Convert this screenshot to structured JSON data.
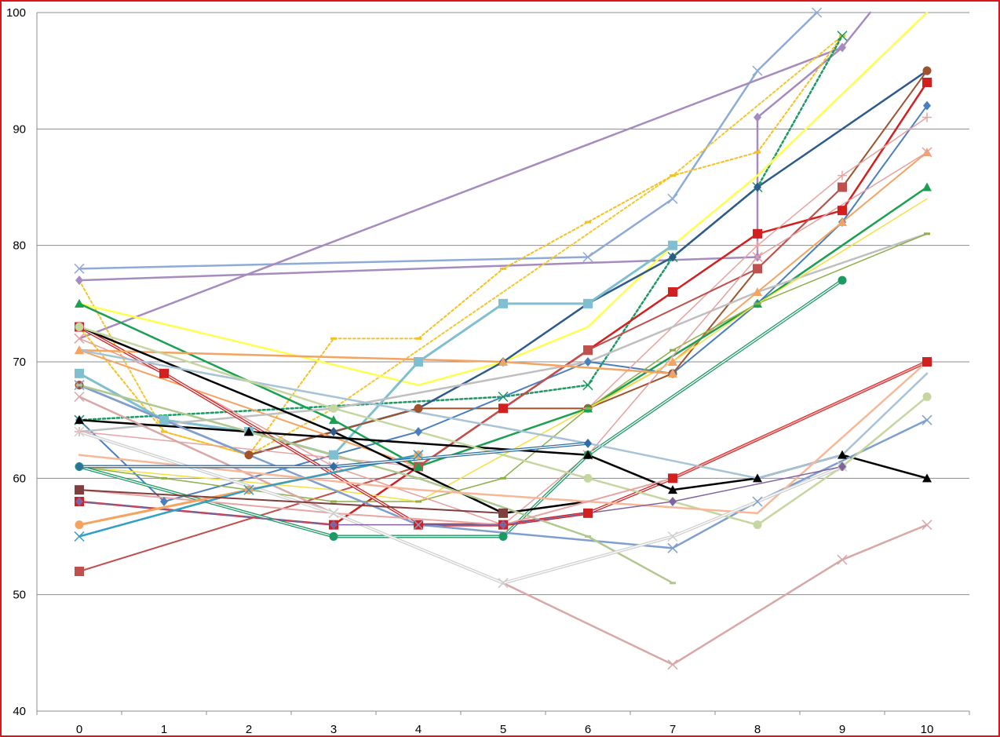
{
  "chart_data": {
    "type": "line",
    "title": "",
    "xlabel": "",
    "ylabel": "",
    "x": [
      0,
      1,
      2,
      3,
      4,
      5,
      6,
      7,
      8,
      9,
      10
    ],
    "ylim": [
      40,
      100
    ],
    "xlim": [
      0,
      10
    ],
    "y_ticks": [
      40,
      50,
      60,
      70,
      80,
      90,
      100
    ],
    "x_ticks": [
      0,
      1,
      2,
      3,
      4,
      5,
      6,
      7,
      8,
      9,
      10
    ],
    "grid": "horizontal",
    "legend": "none",
    "frame_color": "#d9161c",
    "series": [
      {
        "color": "#8eaad6",
        "width": 2.5,
        "marker": "x",
        "points": [
          [
            0,
            78
          ],
          [
            6,
            79
          ],
          [
            7,
            84
          ],
          [
            8,
            95
          ],
          [
            8.7,
            100
          ]
        ]
      },
      {
        "color": "#a68bbf",
        "width": 2.5,
        "marker": "none",
        "points": [
          [
            0,
            72
          ],
          [
            9,
            97
          ],
          [
            9.33,
            100
          ]
        ]
      },
      {
        "color": "#a68bbf",
        "width": 2.5,
        "marker": "diamond",
        "points": [
          [
            0,
            77
          ],
          [
            8,
            79
          ],
          [
            8,
            91
          ],
          [
            9,
            97
          ]
        ]
      },
      {
        "color": "#f2c72e",
        "width": 2,
        "dash": "3,3",
        "marker": "none",
        "points": [
          [
            0,
            77
          ],
          [
            1,
            64
          ],
          [
            2,
            62
          ],
          [
            3,
            66
          ],
          [
            4,
            71
          ],
          [
            5,
            76
          ],
          [
            6,
            81
          ],
          [
            7,
            86
          ],
          [
            8,
            92
          ],
          [
            9,
            98
          ]
        ]
      },
      {
        "color": "#f7c020",
        "width": 2,
        "dash": "3,3",
        "marker": "dash",
        "points": [
          [
            0,
            73
          ],
          [
            1,
            64
          ],
          [
            2,
            62
          ],
          [
            3,
            72
          ],
          [
            4,
            72
          ],
          [
            5,
            78
          ],
          [
            6,
            82
          ],
          [
            7,
            86
          ],
          [
            8,
            88
          ],
          [
            9,
            98
          ]
        ]
      },
      {
        "color": "#1d9a63",
        "width": 2.5,
        "dash": "3,3",
        "marker": "x",
        "points": [
          [
            0,
            65
          ],
          [
            5,
            67
          ],
          [
            6,
            68
          ],
          [
            7,
            79
          ],
          [
            8,
            85
          ],
          [
            9,
            98
          ]
        ]
      },
      {
        "color": "#ffff4d",
        "width": 2.5,
        "marker": "none",
        "points": [
          [
            0,
            75
          ],
          [
            4,
            68
          ],
          [
            5,
            70
          ],
          [
            6,
            73
          ],
          [
            7,
            80
          ],
          [
            8,
            86
          ],
          [
            9,
            93
          ],
          [
            10,
            100
          ]
        ]
      },
      {
        "color": "#2e5a8c",
        "width": 2.5,
        "marker": "diamond",
        "points": [
          [
            0,
            68
          ],
          [
            1,
            65
          ],
          [
            2,
            62
          ],
          [
            3,
            64
          ],
          [
            4,
            66
          ],
          [
            5,
            70
          ],
          [
            6,
            75
          ],
          [
            7,
            79
          ],
          [
            8,
            85
          ],
          [
            10,
            95
          ]
        ]
      },
      {
        "color": "#7fbfcf",
        "width": 3,
        "marker": "square",
        "points": [
          [
            0,
            69
          ],
          [
            1,
            65
          ],
          [
            2,
            64
          ],
          [
            3,
            62
          ],
          [
            4,
            70
          ],
          [
            5,
            75
          ],
          [
            6,
            75
          ],
          [
            7,
            80
          ]
        ]
      },
      {
        "color": "#d21f1f",
        "width": 2.5,
        "marker": "square",
        "points": [
          [
            0,
            58
          ],
          [
            3,
            56
          ],
          [
            4,
            61
          ],
          [
            5,
            66
          ],
          [
            6,
            71
          ],
          [
            7,
            76
          ],
          [
            8,
            81
          ],
          [
            9,
            83
          ],
          [
            10,
            94
          ]
        ]
      },
      {
        "color": "#a0522d",
        "width": 2,
        "marker": "circle",
        "points": [
          [
            0,
            68
          ],
          [
            2,
            62
          ],
          [
            4,
            66
          ],
          [
            6,
            66
          ],
          [
            7,
            69
          ],
          [
            8,
            78
          ],
          [
            9,
            85
          ],
          [
            10,
            95
          ]
        ]
      },
      {
        "color": "#4a7fbf",
        "width": 2,
        "marker": "diamond",
        "points": [
          [
            0,
            65
          ],
          [
            1,
            58
          ],
          [
            4,
            64
          ],
          [
            6,
            70
          ],
          [
            7,
            69
          ],
          [
            8,
            75
          ],
          [
            9,
            82
          ],
          [
            10,
            92
          ]
        ]
      },
      {
        "color": "#e8a3a3",
        "width": 1.5,
        "marker": "plus",
        "points": [
          [
            0,
            64
          ],
          [
            4,
            61
          ],
          [
            6,
            66
          ],
          [
            8,
            80
          ],
          [
            9,
            86
          ],
          [
            10,
            91
          ]
        ]
      },
      {
        "color": "#c0504d",
        "width": 2,
        "marker": "square",
        "points": [
          [
            0,
            52
          ],
          [
            4,
            61
          ],
          [
            6,
            71
          ],
          [
            8,
            78
          ],
          [
            9,
            85
          ]
        ]
      },
      {
        "color": "#f4a460",
        "width": 2,
        "marker": "triangle",
        "points": [
          [
            0,
            71
          ],
          [
            4,
            61
          ],
          [
            6,
            66
          ],
          [
            7,
            70
          ],
          [
            8,
            76
          ],
          [
            9,
            82
          ],
          [
            10,
            88
          ]
        ]
      },
      {
        "color": "#1aa050",
        "width": 2.5,
        "marker": "triangle",
        "points": [
          [
            0,
            75
          ],
          [
            3,
            65
          ],
          [
            4,
            61
          ],
          [
            6,
            66
          ],
          [
            8,
            75
          ],
          [
            10,
            85
          ]
        ]
      },
      {
        "color": "#bfbfbf",
        "width": 2.5,
        "marker": "none",
        "points": [
          [
            0,
            64
          ],
          [
            3,
            66
          ],
          [
            6,
            70
          ],
          [
            8,
            76
          ],
          [
            10,
            81
          ]
        ]
      },
      {
        "color": "#8db04a",
        "width": 1.5,
        "marker": "dash",
        "points": [
          [
            0,
            61
          ],
          [
            1,
            60
          ],
          [
            2,
            59
          ],
          [
            3,
            58
          ],
          [
            4,
            58
          ],
          [
            5,
            60
          ],
          [
            6,
            66
          ],
          [
            7,
            71
          ],
          [
            8,
            75
          ],
          [
            10,
            81
          ]
        ]
      },
      {
        "color": "#f5e043",
        "width": 1.5,
        "marker": "none",
        "points": [
          [
            0,
            61
          ],
          [
            3,
            59
          ],
          [
            4,
            58
          ],
          [
            5,
            62
          ],
          [
            6,
            66
          ],
          [
            7,
            70
          ],
          [
            8,
            75
          ],
          [
            10,
            84
          ]
        ]
      },
      {
        "color": "#e6a0a0",
        "width": 1.5,
        "marker": "x",
        "points": [
          [
            0,
            72
          ],
          [
            1,
            69
          ],
          [
            3,
            61
          ],
          [
            5,
            56
          ],
          [
            6,
            62
          ],
          [
            8,
            79
          ],
          [
            10,
            88
          ]
        ]
      },
      {
        "color": "#1d9a63",
        "width": 1.5,
        "double": true,
        "marker": "circle",
        "points": [
          [
            0,
            61
          ],
          [
            3,
            55
          ],
          [
            5,
            55
          ],
          [
            6,
            62
          ],
          [
            9,
            77
          ]
        ]
      },
      {
        "color": "#d21f1f",
        "width": 1.5,
        "double": true,
        "marker": "square",
        "points": [
          [
            0,
            73
          ],
          [
            1,
            69
          ],
          [
            4,
            56
          ],
          [
            5,
            56
          ],
          [
            6,
            57
          ],
          [
            7,
            60
          ],
          [
            10,
            70
          ]
        ]
      },
      {
        "color": "#f4a460",
        "width": 2.5,
        "marker": "triangle",
        "points": [
          [
            0,
            71
          ],
          [
            5,
            70
          ],
          [
            7,
            69
          ]
        ]
      },
      {
        "color": "#000000",
        "width": 2.5,
        "marker": "triangle",
        "points": [
          [
            0,
            65
          ],
          [
            2,
            64
          ],
          [
            6,
            62
          ],
          [
            7,
            59
          ],
          [
            8,
            60
          ],
          [
            9,
            62
          ],
          [
            10,
            60
          ]
        ]
      },
      {
        "color": "#000000",
        "width": 2.5,
        "marker": "none",
        "points": [
          [
            0,
            73
          ],
          [
            1,
            70
          ],
          [
            3,
            64
          ],
          [
            5,
            57
          ],
          [
            6,
            58
          ]
        ]
      },
      {
        "color": "#7f9fcf",
        "width": 2.5,
        "marker": "x",
        "points": [
          [
            0,
            68
          ],
          [
            4,
            56
          ],
          [
            7,
            54
          ],
          [
            8,
            58
          ],
          [
            10,
            65
          ]
        ]
      },
      {
        "color": "#a8c3d6",
        "width": 2.5,
        "marker": "none",
        "points": [
          [
            0,
            71
          ],
          [
            3,
            67
          ],
          [
            6,
            63
          ],
          [
            8,
            60
          ],
          [
            9,
            62
          ],
          [
            10,
            69
          ]
        ]
      },
      {
        "color": "#c5d6a0",
        "width": 2.5,
        "marker": "circle",
        "points": [
          [
            0,
            73
          ],
          [
            3,
            66
          ],
          [
            6,
            60
          ],
          [
            8,
            56
          ],
          [
            9,
            61
          ],
          [
            10,
            67
          ]
        ]
      },
      {
        "color": "#b0c890",
        "width": 2.5,
        "marker": "dash",
        "points": [
          [
            0,
            68
          ],
          [
            4,
            60
          ],
          [
            6,
            55
          ],
          [
            7,
            51
          ]
        ]
      },
      {
        "color": "#d8a8a8",
        "width": 2.5,
        "marker": "x",
        "points": [
          [
            0,
            67
          ],
          [
            3,
            57
          ],
          [
            5,
            51
          ],
          [
            7,
            44
          ],
          [
            9,
            53
          ],
          [
            10,
            56
          ]
        ]
      },
      {
        "color": "#f7b89a",
        "width": 2.5,
        "marker": "none",
        "points": [
          [
            0,
            62
          ],
          [
            4,
            59
          ],
          [
            8,
            57
          ],
          [
            10,
            70
          ]
        ]
      },
      {
        "color": "#e8a3a3",
        "width": 2,
        "marker": "none",
        "points": [
          [
            0,
            59
          ],
          [
            3,
            57
          ],
          [
            5,
            56
          ],
          [
            7,
            60
          ],
          [
            10,
            70
          ]
        ]
      },
      {
        "color": "#cfcfcf",
        "width": 1.5,
        "double": true,
        "marker": "x",
        "points": [
          [
            0,
            64
          ],
          [
            3,
            57
          ],
          [
            5,
            51
          ],
          [
            7,
            55
          ],
          [
            9,
            61
          ]
        ]
      },
      {
        "color": "#8064a2",
        "width": 1.5,
        "marker": "diamond",
        "points": [
          [
            0,
            58
          ],
          [
            3,
            56
          ],
          [
            5,
            56
          ],
          [
            7,
            58
          ],
          [
            9,
            61
          ]
        ]
      },
      {
        "color": "#f4a460",
        "width": 3,
        "marker": "circle",
        "points": [
          [
            0,
            56
          ],
          [
            2,
            59
          ],
          [
            4,
            62
          ]
        ]
      },
      {
        "color": "#31a0c4",
        "width": 2.5,
        "marker": "x",
        "points": [
          [
            0,
            55
          ],
          [
            2,
            59
          ],
          [
            4,
            62
          ]
        ]
      },
      {
        "color": "#2e6ea6",
        "width": 1.5,
        "double": true,
        "marker": "diamond",
        "points": [
          [
            0,
            61
          ],
          [
            3,
            61
          ],
          [
            6,
            63
          ]
        ]
      },
      {
        "color": "#7f3f3f",
        "width": 2,
        "marker": "square",
        "points": [
          [
            0,
            59
          ],
          [
            5,
            57
          ]
        ]
      }
    ]
  }
}
